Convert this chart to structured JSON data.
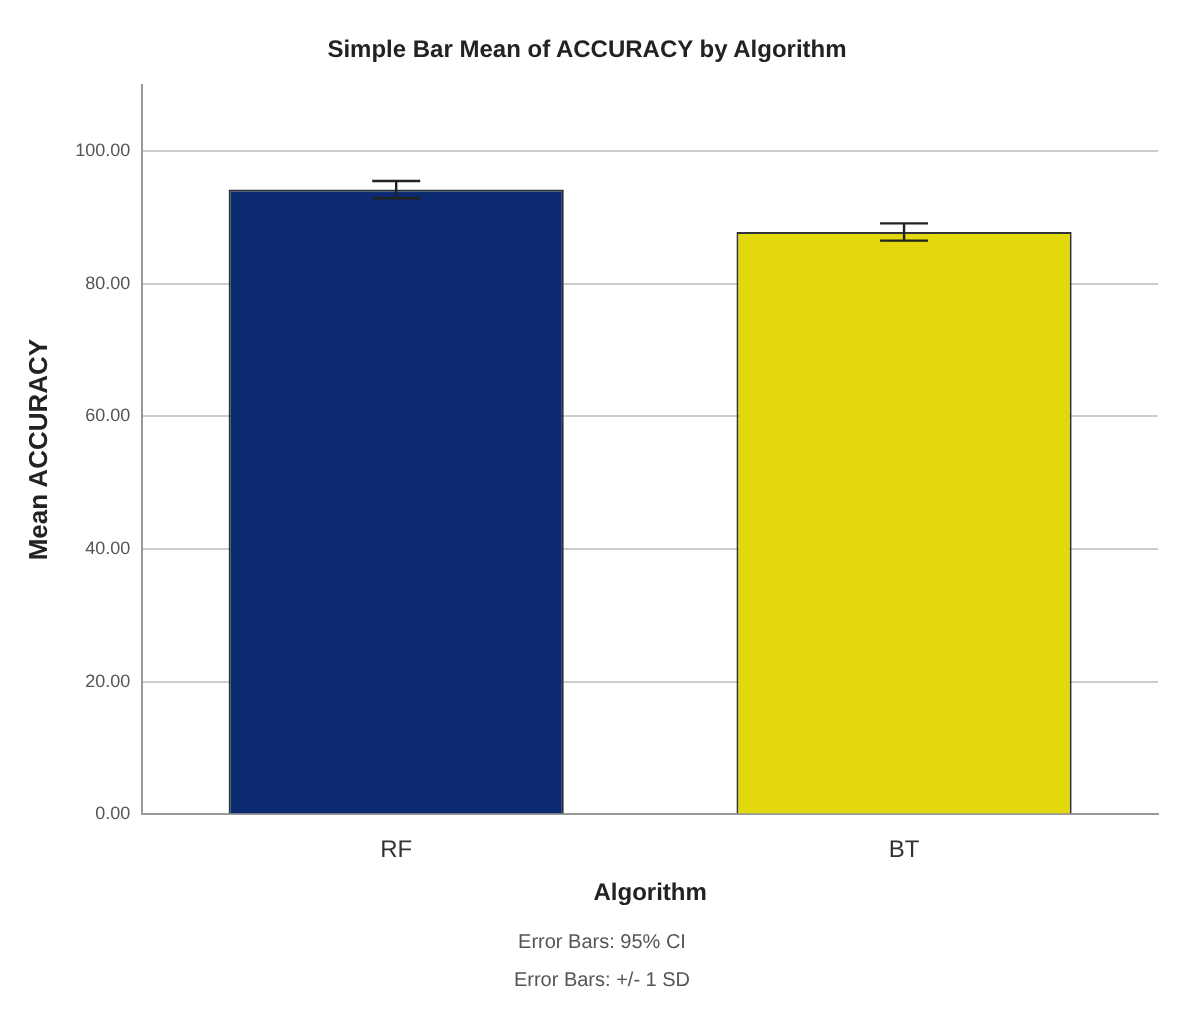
{
  "chart_data": {
    "type": "bar",
    "title": "Simple Bar Mean of ACCURACY by Algorithm",
    "xlabel": "Algorithm",
    "ylabel": "Mean ACCURACY",
    "categories": [
      "RF",
      "BT"
    ],
    "values": [
      94.2,
      87.8
    ],
    "colors": [
      "#0b2a6f",
      "#e3d80b"
    ],
    "errors": [
      1.3,
      1.3
    ],
    "ylim": [
      0,
      110
    ],
    "yticks": [
      {
        "value": 0,
        "label": "0.00"
      },
      {
        "value": 20,
        "label": "20.00"
      },
      {
        "value": 40,
        "label": "40.00"
      },
      {
        "value": 60,
        "label": "60.00"
      },
      {
        "value": 80,
        "label": "80.00"
      },
      {
        "value": 100,
        "label": "100.00"
      }
    ],
    "grid": "y",
    "annotations": [
      "Error Bars: 95% CI",
      "Error Bars: +/- 1 SD"
    ]
  }
}
